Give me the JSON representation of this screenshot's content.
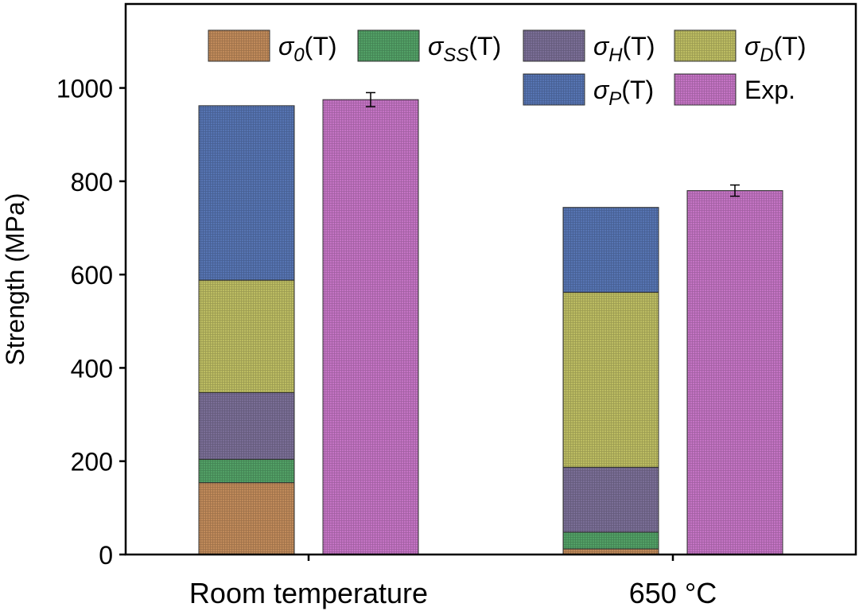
{
  "chart_data": {
    "type": "bar",
    "stacked": true,
    "title": "",
    "xlabel": "",
    "ylabel": "Strength (MPa)",
    "ylim": [
      0,
      1180
    ],
    "yticks": [
      0,
      200,
      400,
      600,
      800,
      1000
    ],
    "categories": [
      "Room temperature",
      "650 °C"
    ],
    "series": [
      {
        "name": "σ0(T)",
        "sym": "σ",
        "sub": "0",
        "tail": "(T)",
        "color": "#c08a5a",
        "values": [
          154,
          12
        ]
      },
      {
        "name": "σSS(T)",
        "sym": "σ",
        "sub": "SS",
        "tail": "(T)",
        "color": "#52a066",
        "values": [
          50,
          36
        ]
      },
      {
        "name": "σH(T)",
        "sym": "σ",
        "sub": "H",
        "tail": "(T)",
        "color": "#7a6e96",
        "values": [
          143,
          139
        ]
      },
      {
        "name": "σD(T)",
        "sym": "σ",
        "sub": "D",
        "tail": "(T)",
        "color": "#bcbc62",
        "values": [
          241,
          375
        ]
      },
      {
        "name": "σP(T)",
        "sym": "σ",
        "sub": "P",
        "tail": "(T)",
        "color": "#5674b2",
        "values": [
          374,
          182
        ]
      }
    ],
    "experimental": {
      "name": "Exp.",
      "color": "#c474c4",
      "values": [
        975,
        780
      ],
      "errors": [
        15,
        12
      ]
    },
    "legend_position": "top-right",
    "grid": false
  }
}
